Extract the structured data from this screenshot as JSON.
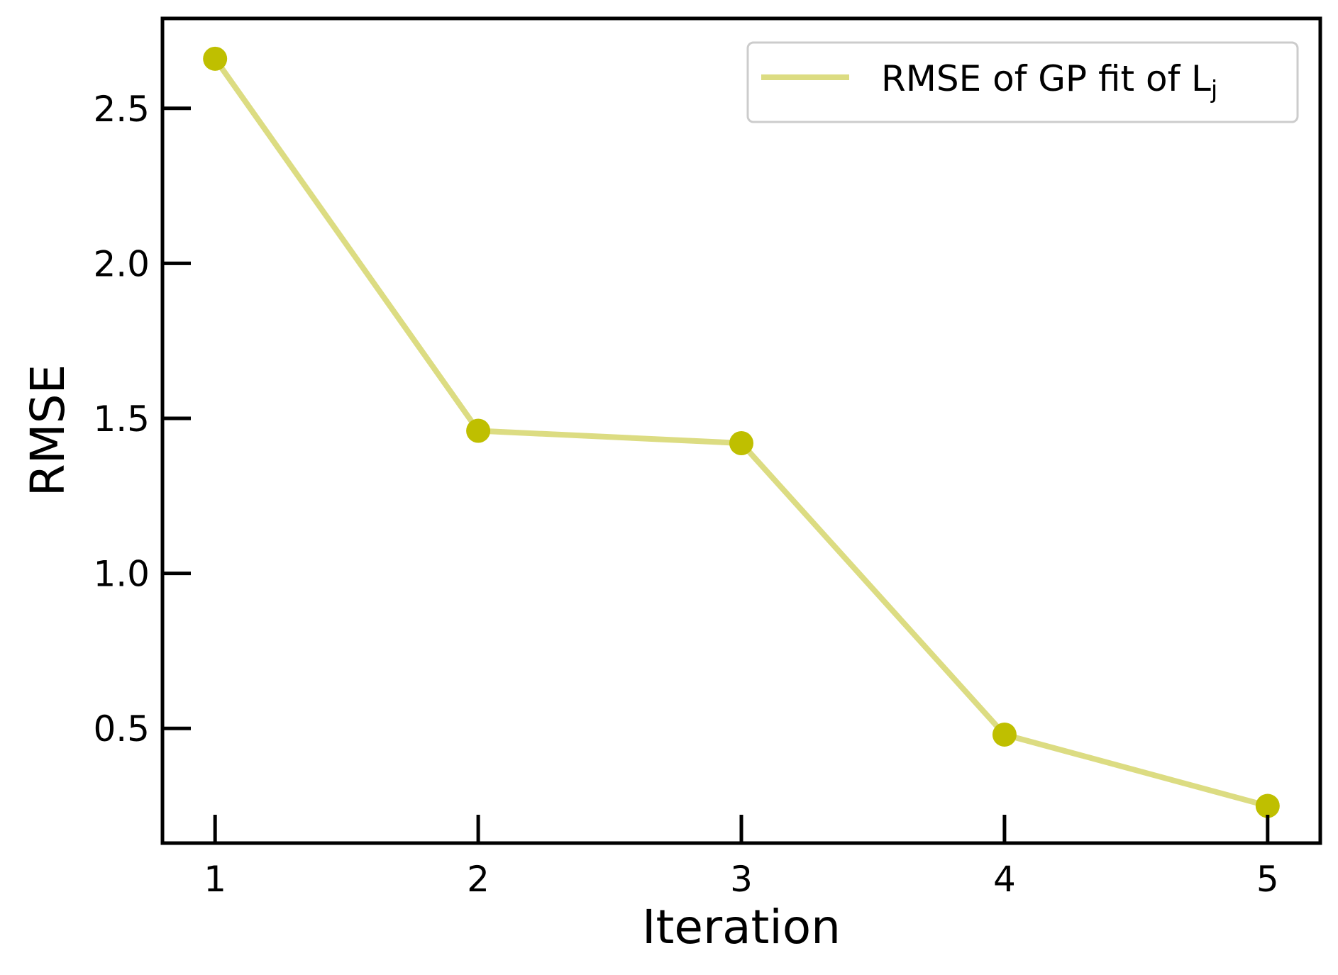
{
  "chart_data": {
    "type": "line",
    "title": "",
    "xlabel": "Iteration",
    "ylabel": "RMSE",
    "x": [
      1,
      2,
      3,
      4,
      5
    ],
    "xticks": [
      "1",
      "2",
      "3",
      "4",
      "5"
    ],
    "yticks": [
      "0.5",
      "1.0",
      "1.5",
      "2.0",
      "2.5"
    ],
    "ytick_values": [
      0.5,
      1.0,
      1.5,
      2.0,
      2.5
    ],
    "xlim": [
      0.8,
      5.2
    ],
    "ylim": [
      0.13,
      2.79
    ],
    "grid": false,
    "legend_position": "top-right",
    "series": [
      {
        "name": "RMSE of GP fit of L",
        "name_subscript": "j",
        "values": [
          2.66,
          1.46,
          1.42,
          0.48,
          0.25
        ],
        "line_color": "#dcdc82",
        "marker_color": "#bfbf00"
      }
    ]
  }
}
